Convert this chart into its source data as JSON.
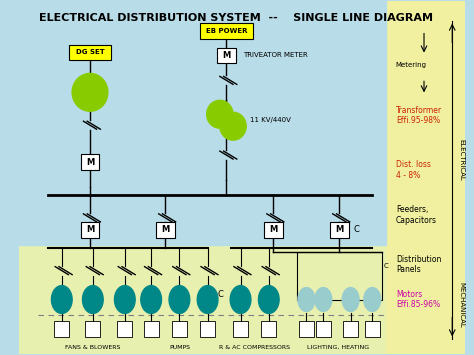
{
  "title": "ELECTRICAL DISTRIBUTION SYSTEM  --    SINGLE LINE DIAGRAM",
  "label_dg": "DG SET",
  "label_eb": "EB POWER",
  "label_triv": "TRIVEATOR METER",
  "label_meter": "Metering",
  "label_11kv": "11 KV/440V",
  "label_trans": "Transformer\nEffi.95-98%",
  "label_dist": "Dist. loss\n4 - 8%",
  "label_feeders": "Feeders,\nCapacitors",
  "label_distpanels": "Distribution\nPanels",
  "label_motors": "Motors\nEffi.85-96%",
  "label_fans": "FANS & BLOWERS",
  "label_pumps": "PUMPS",
  "label_comp": "R & AC COMPRESSORS",
  "label_light": "LIGHTING, HEATING",
  "label_elec": "ELECTRICAL",
  "label_mech": "MECHANICAL",
  "bg_blue": "#b8dce8",
  "bg_yellow": "#e8f0b0",
  "bg_right": "#f0f0a0",
  "motor_color": "#008888",
  "dg_color": "#88cc00",
  "trans_color": "#88cc00",
  "text_red": "#cc2200",
  "text_magenta": "#cc00aa"
}
